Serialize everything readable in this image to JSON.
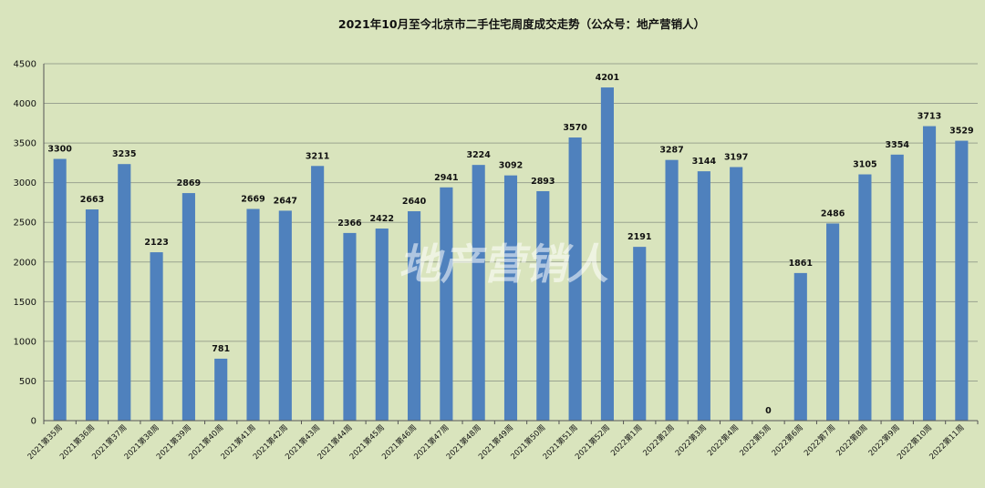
{
  "chart_data": {
    "type": "bar",
    "title": "2021年10月至今北京市二手住宅周度成交走势（公众号：地产营销人）",
    "watermark": "地产营销人",
    "xlabel": "",
    "ylabel": "",
    "ylim": [
      0,
      4500
    ],
    "yticks": [
      0,
      500,
      1000,
      1500,
      2000,
      2500,
      3000,
      3500,
      4000,
      4500
    ],
    "grid": true,
    "legend": "none",
    "bar_color": "#4f81bd",
    "categories": [
      "2021第35周",
      "2021第36周",
      "2021第37周",
      "2021第38周",
      "2021第39周",
      "2021第40周",
      "2021第41周",
      "2021第42周",
      "2021第43周",
      "2021第44周",
      "2021第45周",
      "2021第46周",
      "2021第47周",
      "2021第48周",
      "2021第49周",
      "2021第50周",
      "2021第51周",
      "2021第52周",
      "2022第1周",
      "2022第2周",
      "2022第3周",
      "2022第4周",
      "2022第5周",
      "2022第6周",
      "2022第7周",
      "2022第8周",
      "2022第9周",
      "2022第10周",
      "2022第11周"
    ],
    "values": [
      3300,
      2663,
      3235,
      2123,
      2869,
      781,
      2669,
      2647,
      3211,
      2366,
      2422,
      2640,
      2941,
      3224,
      3092,
      2893,
      3570,
      4201,
      2191,
      3287,
      3144,
      3197,
      0,
      1861,
      2486,
      3105,
      3354,
      3713,
      3529
    ]
  }
}
